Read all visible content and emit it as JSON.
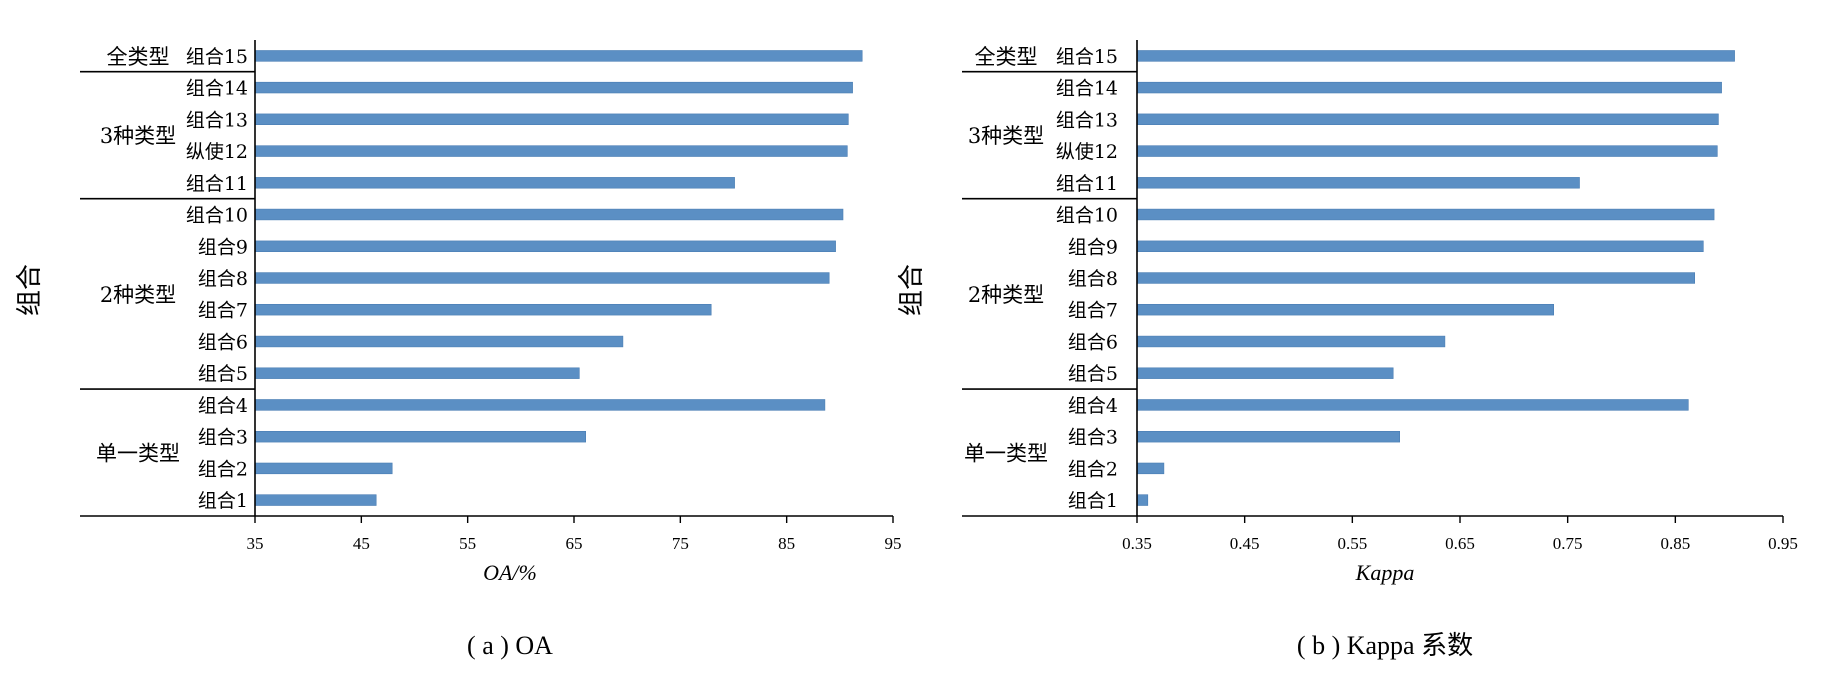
{
  "charts": [
    {
      "caption": "( a ) OA",
      "chart_data": {
        "type": "bar",
        "orientation": "horizontal",
        "xlabel": "OA/%",
        "ylabel": "组合",
        "xlim": [
          35,
          95
        ],
        "xticks": [
          35,
          45,
          55,
          65,
          75,
          85,
          95
        ],
        "grid": false,
        "bar_color": "#5b8fc4",
        "categories": [
          "组合1",
          "组合2",
          "组合3",
          "组合4",
          "组合5",
          "组合6",
          "组合7",
          "组合8",
          "组合9",
          "组合10",
          "组合11",
          "纵使12",
          "组合13",
          "组合14",
          "组合15"
        ],
        "values": [
          46.4,
          47.9,
          66.1,
          88.6,
          65.5,
          69.6,
          77.9,
          89.0,
          89.6,
          90.3,
          80.1,
          90.7,
          90.8,
          91.2,
          92.1
        ],
        "groups": [
          {
            "label": "单一类型",
            "count": 4
          },
          {
            "label": "2种类型",
            "count": 6
          },
          {
            "label": "3种类型",
            "count": 4
          },
          {
            "label": "全类型",
            "count": 1
          }
        ]
      }
    },
    {
      "caption": "( b ) Kappa 系数",
      "chart_data": {
        "type": "bar",
        "orientation": "horizontal",
        "xlabel": "Kappa",
        "ylabel": "组合",
        "xlim": [
          0.35,
          0.95
        ],
        "xticks": [
          "0.35",
          "0.45",
          "0.55",
          "0.65",
          "0.75",
          "0.85",
          "0.95"
        ],
        "grid": false,
        "bar_color": "#5b8fc4",
        "categories": [
          "组合1",
          "组合2",
          "组合3",
          "组合4",
          "组合5",
          "组合6",
          "组合7",
          "组合8",
          "组合9",
          "组合10",
          "组合11",
          "纵使12",
          "组合13",
          "组合14",
          "组合15"
        ],
        "values": [
          0.36,
          0.375,
          0.594,
          0.862,
          0.588,
          0.636,
          0.737,
          0.868,
          0.876,
          0.886,
          0.761,
          0.889,
          0.89,
          0.893,
          0.905
        ],
        "groups": [
          {
            "label": "单一类型",
            "count": 4
          },
          {
            "label": "2种类型",
            "count": 6
          },
          {
            "label": "3种类型",
            "count": 4
          },
          {
            "label": "全类型",
            "count": 1
          }
        ]
      }
    }
  ]
}
